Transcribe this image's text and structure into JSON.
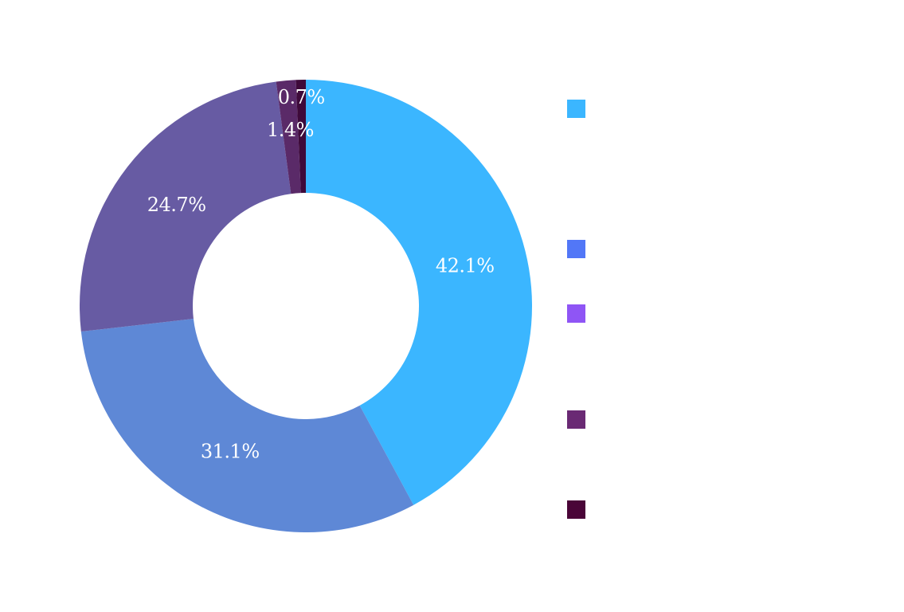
{
  "chart_data": {
    "type": "pie",
    "variant": "donut",
    "title": "",
    "slices": [
      {
        "label": "",
        "value": 42.1,
        "display": "42.1%",
        "color": "#3bb6ff",
        "legend_color": "#3bb6ff"
      },
      {
        "label": "",
        "value": 31.1,
        "display": "31.1%",
        "color": "#5e88d6",
        "legend_color": "#5277f7"
      },
      {
        "label": "",
        "value": 24.7,
        "display": "24.7%",
        "color": "#675ba3",
        "legend_color": "#8f55f5"
      },
      {
        "label": "",
        "value": 1.4,
        "display": "1.4%",
        "color": "#5a2a68",
        "legend_color": "#6a2a74"
      },
      {
        "label": "",
        "value": 0.7,
        "display": "0.7%",
        "color": "#3e0a3a",
        "legend_color": "#4a0538"
      }
    ],
    "legend_position": "right",
    "background": "#ffffff"
  }
}
